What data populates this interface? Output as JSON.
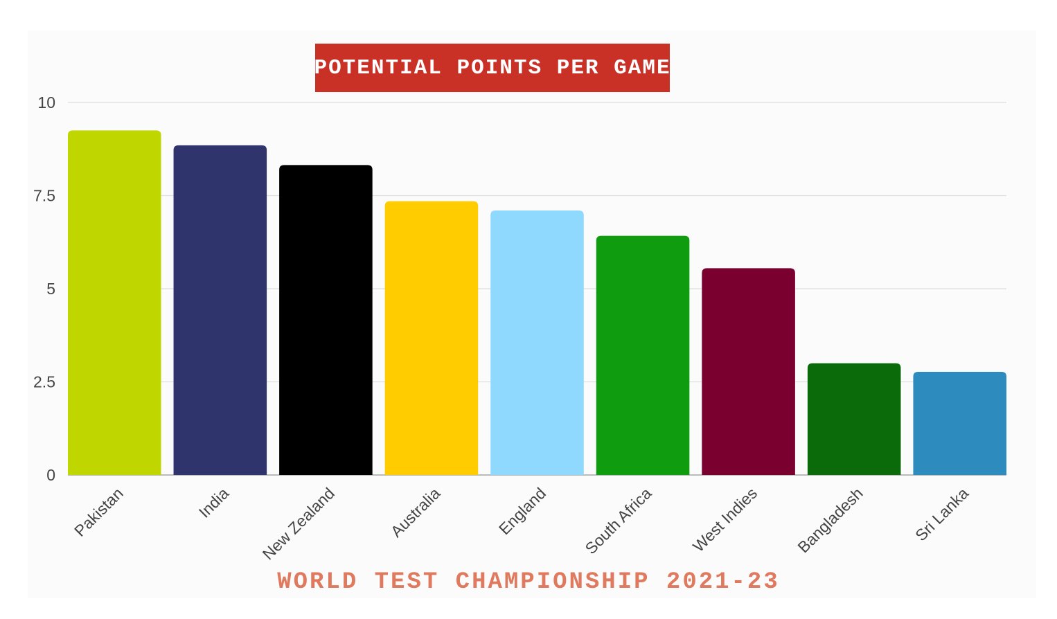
{
  "chart_data": {
    "type": "bar",
    "title": "POTENTIAL POINTS PER GAME",
    "subtitle": "WORLD TEST CHAMPIONSHIP 2021-23",
    "categories": [
      "Pakistan",
      "India",
      "New Zealand",
      "Australia",
      "England",
      "South Africa",
      "West Indies",
      "Bangladesh",
      "Sri Lanka"
    ],
    "values": [
      9.25,
      8.85,
      8.32,
      7.35,
      7.1,
      6.42,
      5.55,
      3.0,
      2.77
    ],
    "colors": [
      "#bfd600",
      "#30346d",
      "#000000",
      "#ffcc00",
      "#8fd9ff",
      "#0f9d0f",
      "#7a0030",
      "#0b6b0b",
      "#2e8bbd"
    ],
    "yticks": [
      "0",
      "2.5",
      "5",
      "7.5",
      "10"
    ],
    "ytick_values": [
      0,
      2.5,
      5,
      7.5,
      10
    ],
    "ylim": [
      0,
      10
    ],
    "xlabel": "",
    "ylabel": "",
    "grid": true,
    "legend": "none"
  }
}
